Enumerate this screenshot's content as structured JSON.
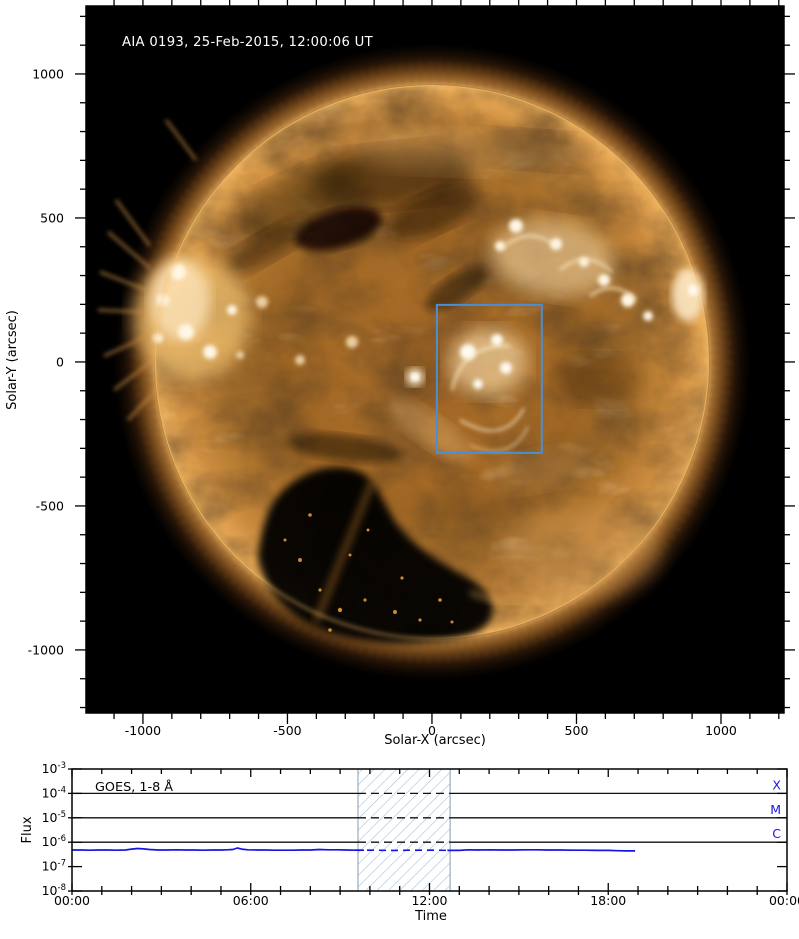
{
  "colors": {
    "background": "#ffffff",
    "frame": "#000000",
    "solar_title": "#ffffff",
    "goes_accent": "#1a17e0",
    "flux_line": "#1414e6",
    "fov_box": "#4a8fd4",
    "hatch_line": "#a4c2de",
    "hatch_border": "#8a9bb0"
  },
  "chart_data": [
    {
      "type": "heatmap",
      "subtype": "solar-euv-full-disk-image",
      "title": "AIA 0193, 25-Feb-2015, 12:00:06 UT",
      "xlabel": "Solar-X (arcsec)",
      "ylabel": "Solar-Y (arcsec)",
      "x_range": [
        -1197,
        1218
      ],
      "y_range": [
        -1219,
        1236
      ],
      "x_ticks": [
        -1000,
        -500,
        0,
        500,
        1000
      ],
      "y_ticks": [
        -1000,
        -500,
        0,
        500,
        1000
      ],
      "minor_tick_step": 100,
      "grid": false,
      "palette": "black to orange-gold EUV (AIA 193)",
      "features": [
        "full solar disk with mottled corona",
        "large dark southern coronal hole",
        "bright active regions east limb, north-west cluster, disk centre",
        "faint radial coronal rays beyond limb"
      ],
      "annotations": [
        {
          "type": "rectangle",
          "label": "field-of-view-box",
          "x_min": 17,
          "x_max": 380,
          "y_min": -316,
          "y_max": 198,
          "color": "#4a8fd4"
        }
      ]
    },
    {
      "type": "line",
      "title": "GOES, 1-8 Å",
      "xlabel": "Time",
      "ylabel": "Flux",
      "x_range": [
        0,
        24
      ],
      "x_unit": "hours",
      "x_tick_hours": [
        0,
        6,
        12,
        18,
        24
      ],
      "x_tick_labels": [
        "00:00",
        "06:00",
        "12:00",
        "18:00",
        "00:00"
      ],
      "y_scale": "log",
      "y_range": [
        1e-08,
        0.001
      ],
      "y_tick_base": "10",
      "y_tick_exponents": [
        -3,
        -4,
        -5,
        -6,
        -7,
        -8
      ],
      "grid": false,
      "legend_position": "top-left",
      "reference_lines": [
        {
          "label": "X",
          "y": 0.0001
        },
        {
          "label": "M",
          "y": 1e-05
        },
        {
          "label": "C",
          "y": 1e-06
        }
      ],
      "shaded_interval": {
        "x_start_hours": 9.6,
        "x_end_hours": 12.69,
        "style": "blue-diagonal-hatch"
      },
      "series": [
        {
          "name": "GOES 1-8 Å flux",
          "color": "#1414e6",
          "y_multiplier": 1e-07,
          "x": [
            0,
            0.3,
            0.6,
            0.9,
            1.2,
            1.5,
            1.8,
            2.0,
            2.2,
            2.4,
            2.6,
            2.9,
            3.2,
            3.5,
            3.8,
            4.1,
            4.4,
            4.7,
            5.0,
            5.2,
            5.4,
            5.55,
            5.7,
            5.9,
            6.2,
            6.5,
            6.8,
            7.1,
            7.4,
            7.7,
            8.0,
            8.3,
            8.6,
            8.9,
            9.2,
            9.5,
            9.8,
            10.2,
            10.6,
            11.0,
            11.4,
            11.8,
            12.2,
            12.6,
            13.0,
            13.3,
            13.6,
            14.0,
            14.4,
            14.8,
            15.2,
            15.6,
            16.0,
            16.4,
            16.8,
            17.2,
            17.6,
            18.0,
            18.3,
            18.6,
            18.9
          ],
          "y": [
            4.8,
            4.8,
            4.7,
            4.8,
            4.8,
            4.7,
            4.8,
            5.2,
            5.5,
            5.3,
            5.0,
            4.8,
            4.8,
            4.9,
            4.8,
            4.8,
            4.7,
            4.8,
            4.8,
            4.9,
            5.0,
            5.8,
            5.2,
            4.9,
            4.8,
            4.8,
            4.7,
            4.7,
            4.7,
            4.8,
            4.8,
            5.0,
            4.9,
            4.9,
            4.8,
            4.7,
            4.7,
            4.7,
            4.6,
            4.6,
            4.7,
            4.7,
            4.7,
            4.6,
            4.6,
            4.9,
            4.8,
            4.9,
            4.8,
            4.8,
            4.9,
            4.9,
            4.8,
            4.8,
            4.7,
            4.7,
            4.6,
            4.6,
            4.5,
            4.4,
            4.4
          ]
        }
      ]
    }
  ]
}
